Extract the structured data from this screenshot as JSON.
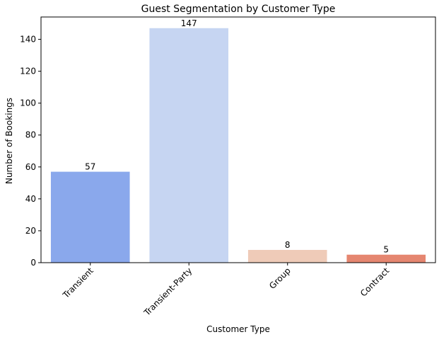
{
  "chart_data": {
    "type": "bar",
    "title": "Guest Segmentation by Customer Type",
    "xlabel": "Customer Type",
    "ylabel": "Number of Bookings",
    "categories": [
      "Transient",
      "Transient-Party",
      "Group",
      "Contract"
    ],
    "values": [
      57,
      147,
      8,
      5
    ],
    "data_labels": [
      "57",
      "147",
      "8",
      "5"
    ],
    "colors": [
      "#8aa8ec",
      "#c6d5f2",
      "#efcbb8",
      "#e58670"
    ],
    "ylim": [
      0,
      154
    ],
    "yticks": [
      0,
      20,
      40,
      60,
      80,
      100,
      120,
      140
    ],
    "grid": false,
    "legend": "none",
    "xtick_rotation": -45
  }
}
